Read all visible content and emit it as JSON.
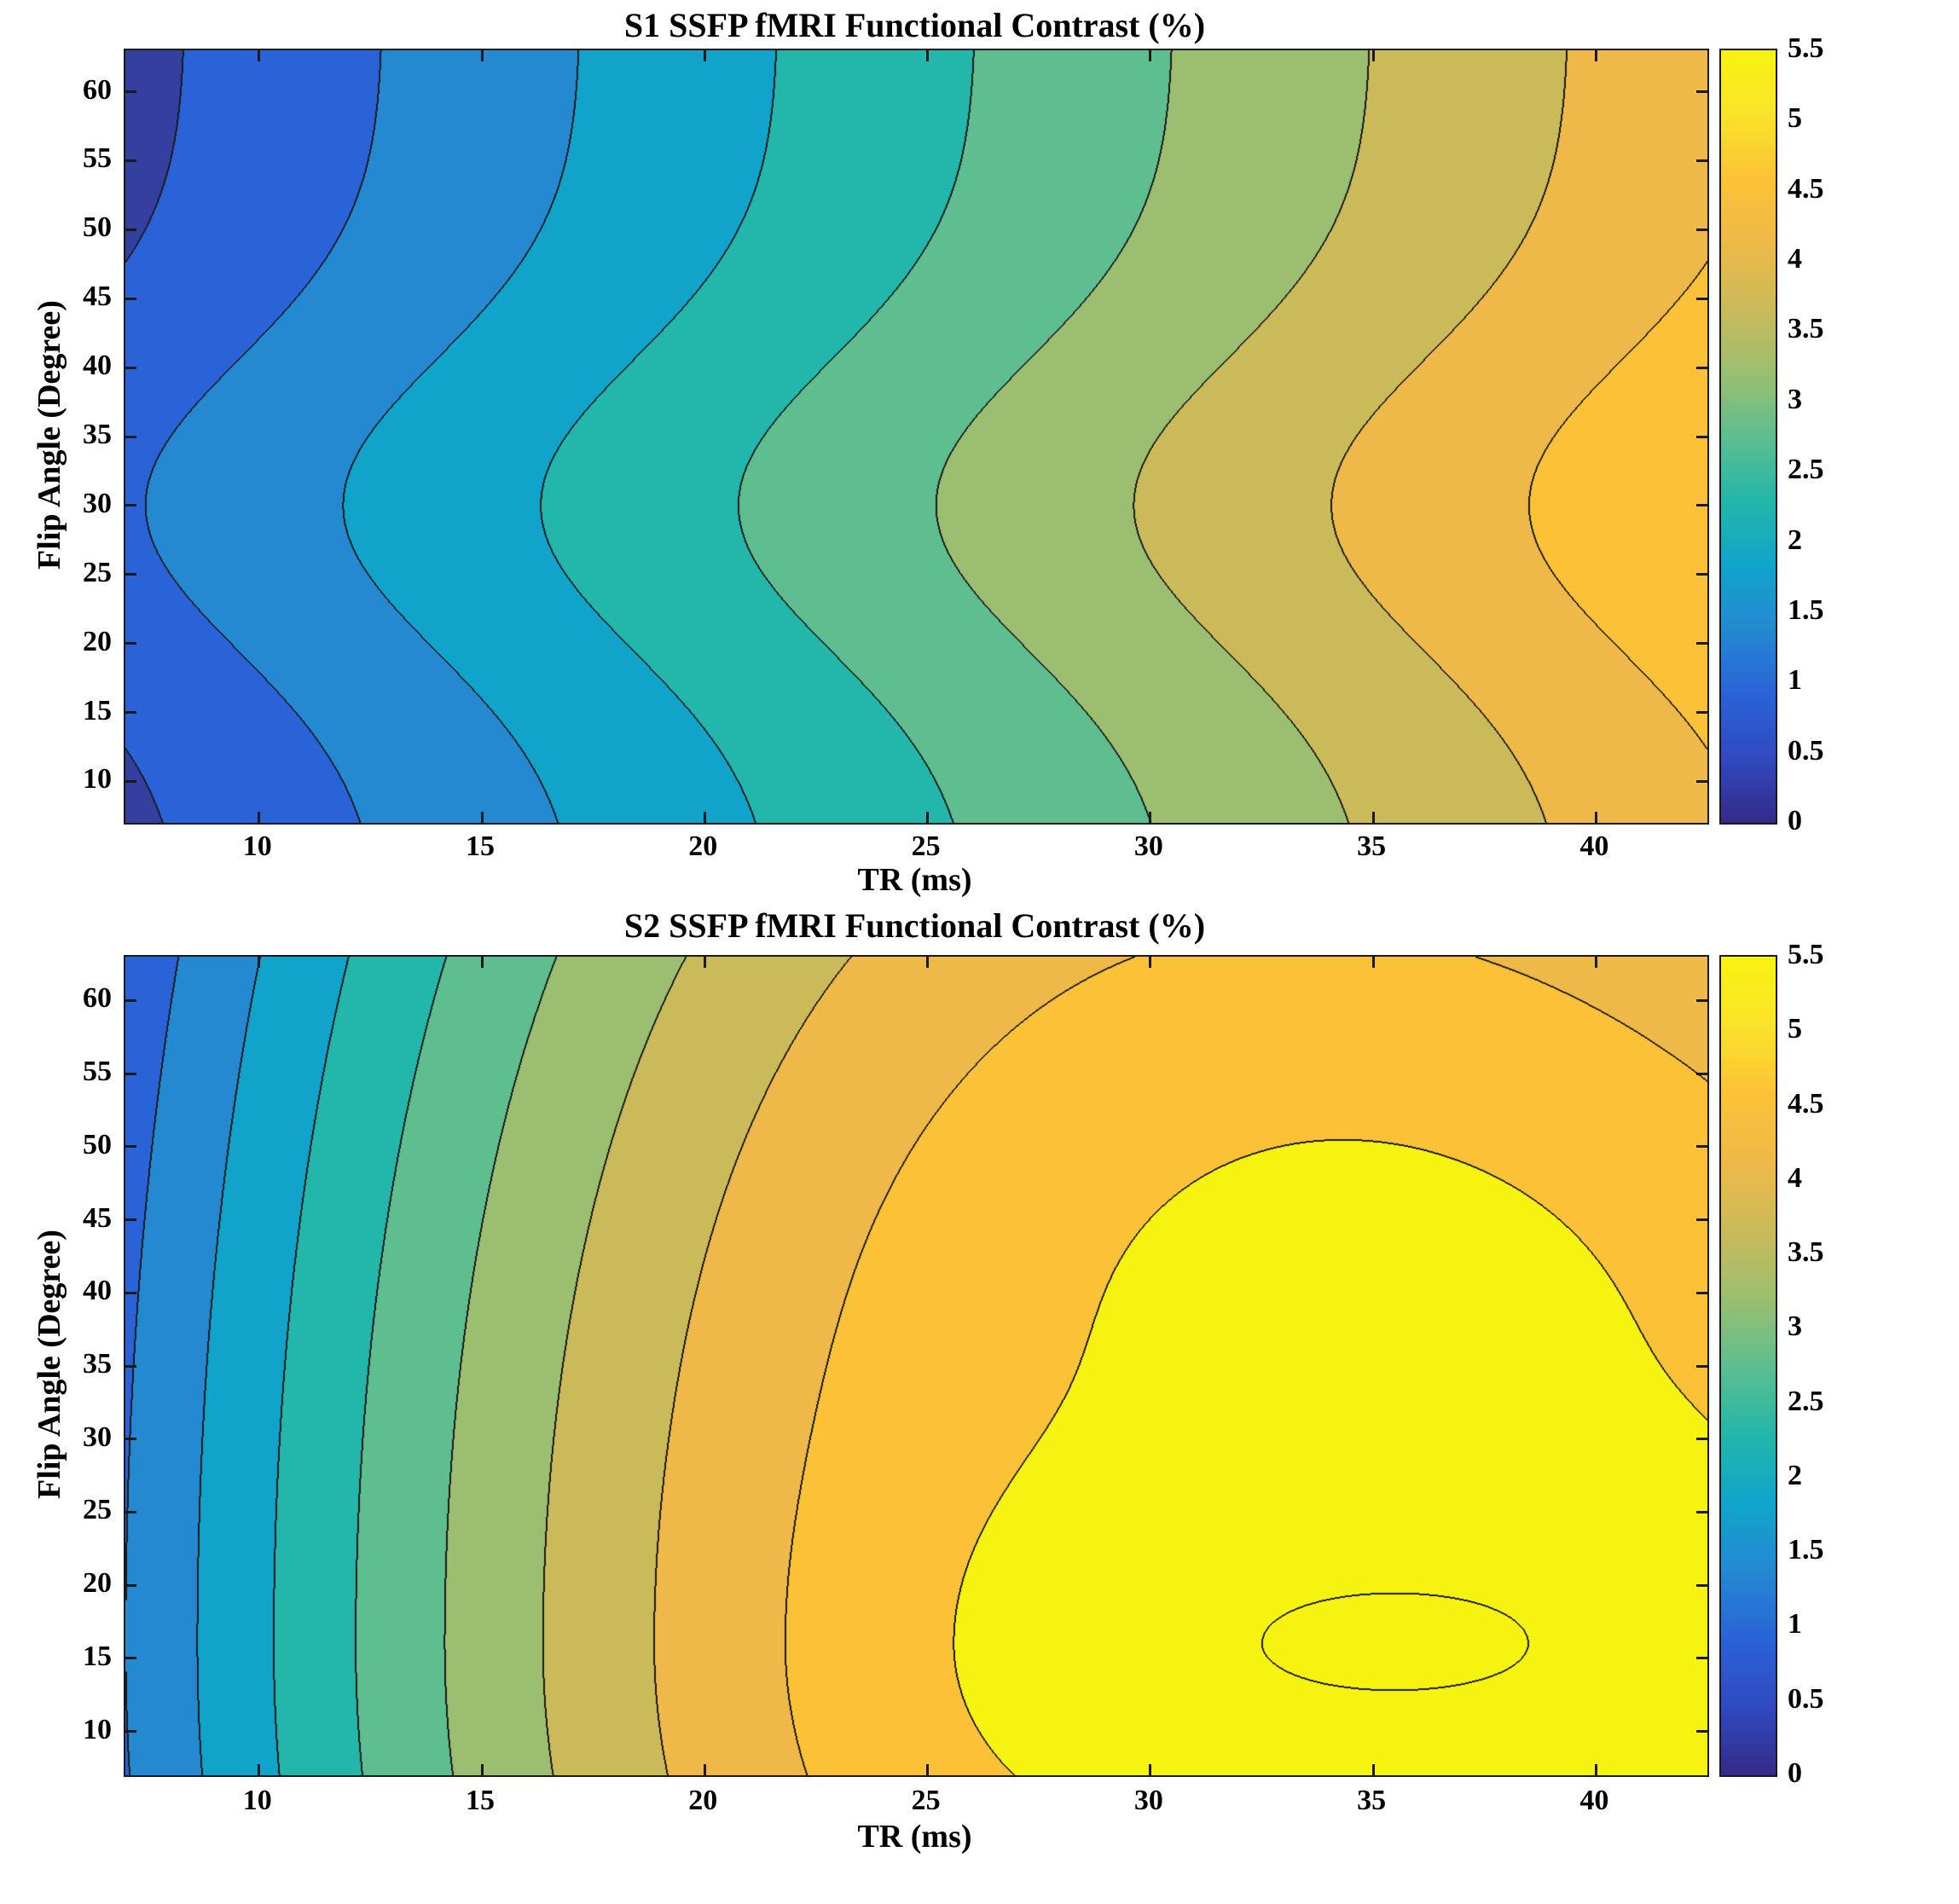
{
  "page": {
    "background": "#ffffff"
  },
  "chart_data": [
    {
      "type": "contour",
      "title": "S1 SSFP fMRI Functional Contrast (%)",
      "xlabel": "TR (ms)",
      "ylabel": "Flip Angle (Degree)",
      "x_range": [
        7,
        42.5
      ],
      "y_range": [
        7,
        63
      ],
      "x_ticks": [
        10,
        15,
        20,
        25,
        30,
        35,
        40
      ],
      "y_ticks": [
        10,
        15,
        20,
        25,
        30,
        35,
        40,
        45,
        50,
        55,
        60
      ],
      "level_step": 0.5,
      "value_range": [
        0,
        5.5
      ],
      "grid": false,
      "colorbar": {
        "min": 0,
        "max": 5.5,
        "ticks": [
          0,
          0.5,
          1,
          1.5,
          2,
          2.5,
          3,
          3.5,
          4,
          4.5,
          5,
          5.5
        ]
      },
      "surface": {
        "form": "linear_gauss",
        "c0": 0.35,
        "c1": 4.0,
        "x0": 7,
        "xs": 35.5,
        "A": 0.6,
        "y0": 30,
        "ys": 15
      },
      "notes": {
        "max_value_pct": 4.95,
        "max_location": {
          "TR_ms": 42,
          "flip_deg": 30
        }
      }
    },
    {
      "type": "contour",
      "title": "S2 SSFP fMRI Functional Contrast (%)",
      "xlabel": "TR (ms)",
      "ylabel": "Flip Angle (Degree)",
      "x_range": [
        7,
        42.5
      ],
      "y_range": [
        7,
        63
      ],
      "x_ticks": [
        10,
        15,
        20,
        25,
        30,
        35,
        40
      ],
      "y_ticks": [
        10,
        15,
        20,
        25,
        30,
        35,
        40,
        45,
        50,
        55,
        60
      ],
      "level_step": 0.5,
      "value_range": [
        0,
        5.5
      ],
      "grid": false,
      "colorbar": {
        "min": 0,
        "max": 5.5,
        "ticks": [
          0,
          0.5,
          1,
          1.5,
          2,
          2.5,
          3,
          3.5,
          4,
          4.5,
          5,
          5.5
        ]
      },
      "surface": {
        "form": "elliptic_peak",
        "P": 5.55,
        "xp": 35.5,
        "yp": 16,
        "a": 0.0056,
        "b_up": 0.00052,
        "b_down": 0.0012,
        "w0": 0.3,
        "w1": 0.7,
        "x0": 7,
        "xs": 35.5,
        "D": 0.004,
        "dx": 8,
        "dy": 15
      },
      "notes": {
        "max_value_pct": 5.55,
        "max_location": {
          "TR_ms": 35.5,
          "flip_deg": 16
        }
      }
    }
  ],
  "style": {
    "band_colors": [
      "#33409f",
      "#2a63d8",
      "#2489d1",
      "#10a4cb",
      "#23b6aa",
      "#5ebe8f",
      "#9cbe70",
      "#cbba5a",
      "#eeb948",
      "#fcc237",
      "#f7f311"
    ],
    "colormap_stops": [
      "#352a87",
      "#3049c0",
      "#2a63d8",
      "#2489d1",
      "#10a4cb",
      "#23b6aa",
      "#5ebe8f",
      "#9cbe70",
      "#cbba5a",
      "#eeb948",
      "#fcc237",
      "#fbe32a",
      "#f7f311"
    ],
    "contour_line_color": "#1b1b1b",
    "axis_color": "#1a1a1a"
  }
}
